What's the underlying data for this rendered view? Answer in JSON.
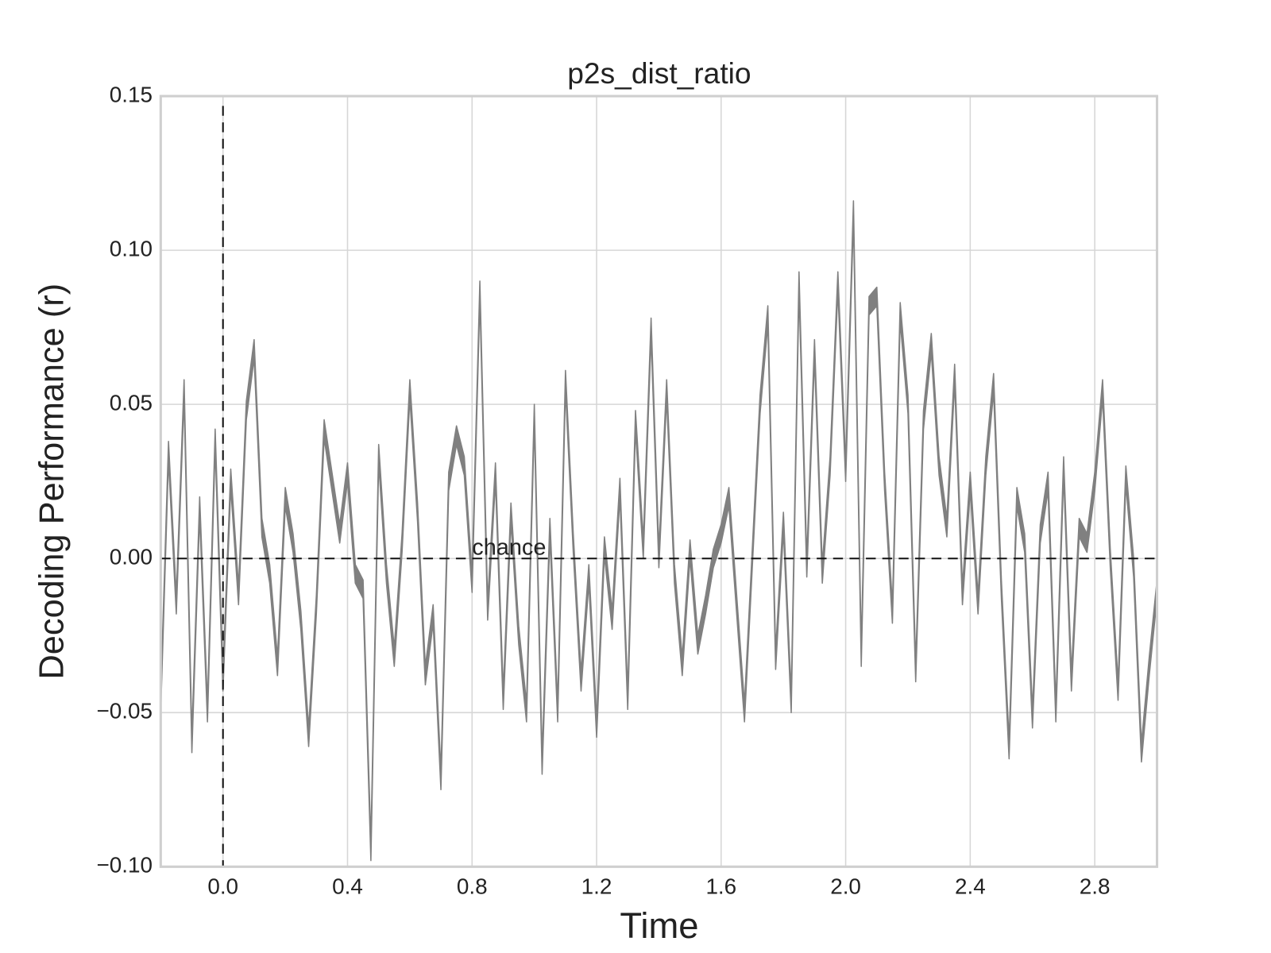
{
  "chart_data": {
    "type": "band",
    "title": "p2s_dist_ratio",
    "x_label": "Time",
    "y_label": "Decoding Performance (r)",
    "color": "#808080",
    "grid": true,
    "xlim": [
      -0.2,
      3.0
    ],
    "ylim": [
      -0.1,
      0.15
    ],
    "xticks": [
      {
        "value": 0,
        "label": "0.0"
      },
      0.4,
      0.8,
      1.2,
      1.6,
      {
        "value": 2,
        "label": "2.0"
      },
      2.4,
      2.8
    ],
    "yticks": [
      {
        "value": -0.1,
        "label": "−0.10"
      },
      {
        "value": -0.05,
        "label": "−0.05"
      },
      {
        "value": 0,
        "label": "0.00"
      },
      0.05,
      {
        "value": 0.1,
        "label": "0.10"
      },
      0.15
    ],
    "hline": 0,
    "vline": 0,
    "annotation": {
      "text": "chance",
      "x": 0.8,
      "y": 0
    },
    "x": [
      -0.2,
      -0.175,
      -0.15,
      -0.125,
      -0.1,
      -0.075,
      -0.05,
      -0.025,
      0,
      0.025,
      0.05,
      0.075,
      0.1,
      0.125,
      0.15,
      0.175,
      0.2,
      0.225,
      0.25,
      0.275,
      0.3,
      0.325,
      0.35,
      0.375,
      0.4,
      0.425,
      0.45,
      0.475,
      0.5,
      0.525,
      0.55,
      0.575,
      0.6,
      0.625,
      0.65,
      0.675,
      0.7,
      0.725,
      0.75,
      0.775,
      0.8,
      0.825,
      0.85,
      0.875,
      0.9,
      0.925,
      0.95,
      0.975,
      1,
      1.025,
      1.05,
      1.075,
      1.1,
      1.125,
      1.15,
      1.175,
      1.2,
      1.225,
      1.25,
      1.275,
      1.3,
      1.325,
      1.35,
      1.375,
      1.4,
      1.425,
      1.45,
      1.475,
      1.5,
      1.525,
      1.55,
      1.575,
      1.6,
      1.625,
      1.65,
      1.675,
      1.7,
      1.725,
      1.75,
      1.775,
      1.8,
      1.825,
      1.85,
      1.875,
      1.9,
      1.925,
      1.95,
      1.975,
      2,
      2.025,
      2.05,
      2.075,
      2.1,
      2.125,
      2.15,
      2.175,
      2.2,
      2.225,
      2.25,
      2.275,
      2.3,
      2.325,
      2.35,
      2.375,
      2.4,
      2.425,
      2.45,
      2.475,
      2.5,
      2.525,
      2.55,
      2.575,
      2.6,
      2.625,
      2.65,
      2.675,
      2.7,
      2.725,
      2.75,
      2.775,
      2.8,
      2.825,
      2.85,
      2.875,
      2.9,
      2.925,
      2.95,
      2.975,
      3
    ],
    "upper": [
      -0.044,
      0.038,
      -0.012,
      0.058,
      -0.057,
      0.02,
      -0.047,
      0.042,
      -0.037,
      0.029,
      -0.009,
      0.051,
      0.071,
      0.013,
      -0.002,
      -0.032,
      0.023,
      0.008,
      -0.017,
      -0.055,
      -0.012,
      0.045,
      0.028,
      0.011,
      0.031,
      -0.002,
      -0.007,
      -0.092,
      0.037,
      -0.002,
      -0.029,
      0.008,
      0.058,
      0.018,
      -0.035,
      -0.015,
      -0.069,
      0.028,
      0.043,
      0.033,
      -0.005,
      0.09,
      -0.014,
      0.031,
      -0.043,
      0.018,
      -0.022,
      -0.047,
      0.05,
      -0.064,
      0.013,
      -0.047,
      0.061,
      0.008,
      -0.037,
      -0.002,
      -0.052,
      0.007,
      -0.017,
      0.026,
      -0.043,
      0.048,
      0.006,
      0.078,
      0.003,
      0.058,
      -0.002,
      -0.032,
      0.006,
      -0.025,
      -0.012,
      0.003,
      0.011,
      0.023,
      -0.012,
      -0.047,
      0.003,
      0.053,
      0.082,
      -0.03,
      0.015,
      -0.044,
      0.093,
      0,
      0.071,
      -0.002,
      0.033,
      0.093,
      0.031,
      0.116,
      -0.029,
      0.085,
      0.088,
      0.028,
      -0.015,
      0.083,
      0.053,
      -0.034,
      0.048,
      0.073,
      0.033,
      0.013,
      0.063,
      -0.009,
      0.028,
      -0.012,
      0.033,
      0.06,
      -0.007,
      -0.059,
      0.023,
      0.008,
      -0.049,
      0.011,
      0.028,
      -0.047,
      0.033,
      -0.037,
      0.013,
      0.008,
      0.028,
      0.058,
      0.003,
      -0.04,
      0.03,
      0,
      -0.06,
      -0.032,
      -0.007
    ],
    "lower": [
      -0.05,
      0.032,
      -0.018,
      0.052,
      -0.063,
      0.014,
      -0.053,
      0.036,
      -0.043,
      0.023,
      -0.015,
      0.045,
      0.065,
      0.007,
      -0.008,
      -0.038,
      0.017,
      0.002,
      -0.023,
      -0.061,
      -0.018,
      0.039,
      0.022,
      0.005,
      0.025,
      -0.008,
      -0.013,
      -0.098,
      0.031,
      -0.008,
      -0.035,
      0.002,
      0.052,
      0.012,
      -0.041,
      -0.021,
      -0.075,
      0.022,
      0.037,
      0.027,
      -0.011,
      0.084,
      -0.02,
      0.025,
      -0.049,
      0.012,
      -0.028,
      -0.053,
      0.044,
      -0.07,
      0.007,
      -0.053,
      0.055,
      0.002,
      -0.043,
      -0.008,
      -0.058,
      0.001,
      -0.023,
      0.02,
      -0.049,
      0.042,
      0,
      0.072,
      -0.003,
      0.052,
      -0.008,
      -0.038,
      0,
      -0.031,
      -0.018,
      -0.003,
      0.005,
      0.017,
      -0.018,
      -0.053,
      -0.003,
      0.047,
      0.076,
      -0.036,
      0.009,
      -0.05,
      0.087,
      -0.006,
      0.065,
      -0.008,
      0.027,
      0.087,
      0.025,
      0.11,
      -0.035,
      0.079,
      0.082,
      0.022,
      -0.021,
      0.077,
      0.047,
      -0.04,
      0.042,
      0.067,
      0.027,
      0.007,
      0.057,
      -0.015,
      0.022,
      -0.018,
      0.027,
      0.054,
      -0.013,
      -0.065,
      0.017,
      0.002,
      -0.055,
      0.005,
      0.022,
      -0.053,
      0.027,
      -0.043,
      0.007,
      0.002,
      0.022,
      0.052,
      -0.003,
      -0.046,
      0.024,
      -0.006,
      -0.066,
      -0.038,
      -0.013
    ]
  }
}
